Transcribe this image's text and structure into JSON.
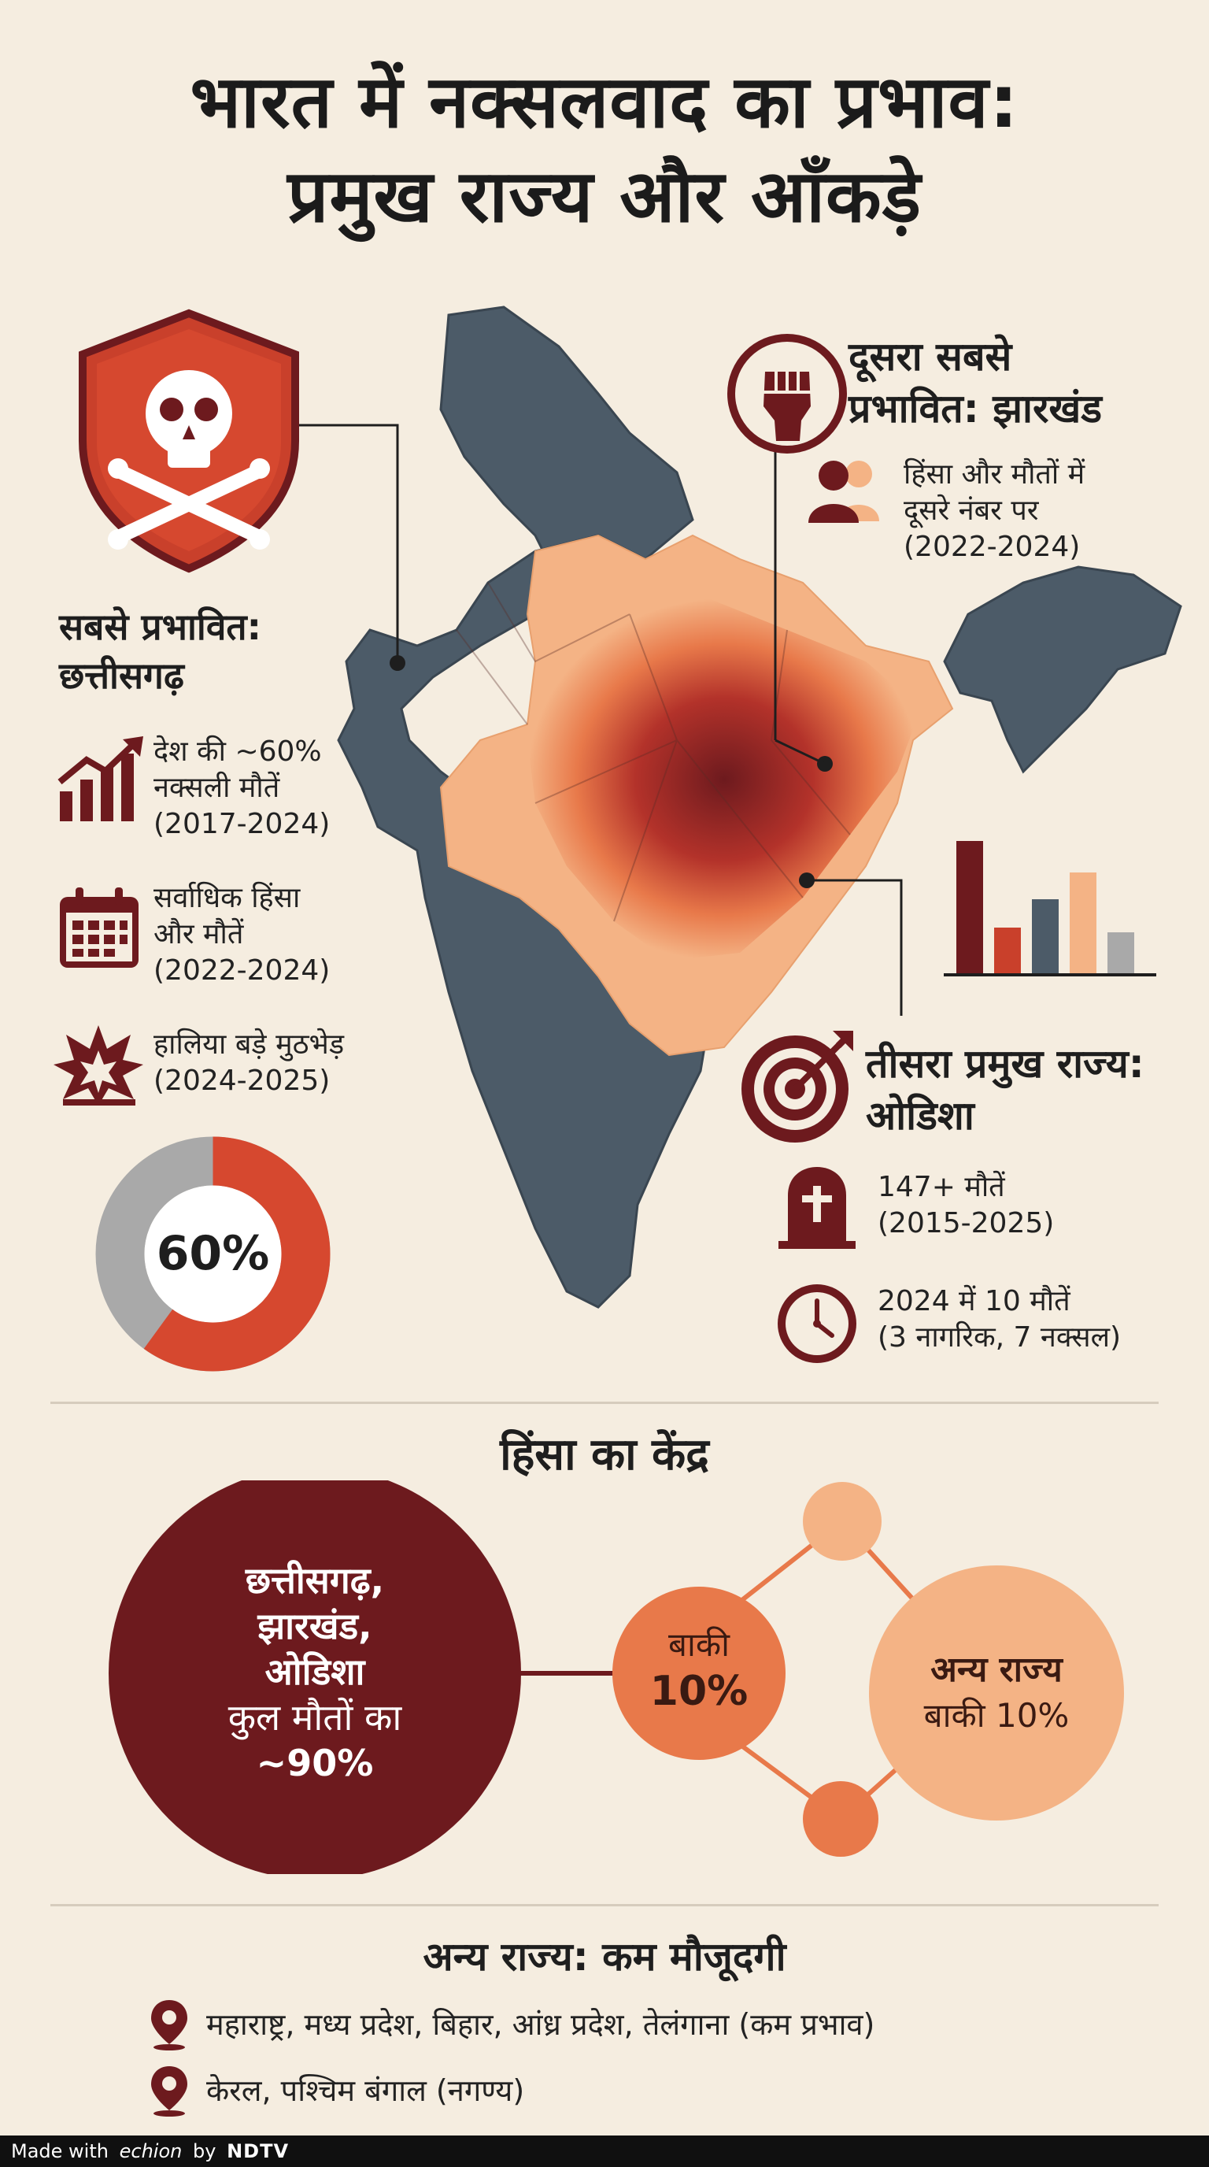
{
  "title": {
    "line1": "भारत में नक्सलवाद का प्रभाव:",
    "line2": "प्रमुख राज्य और आँकड़े"
  },
  "left_panel": {
    "heading_line1": "सबसे प्रभावित:",
    "heading_line2": "छत्तीसगढ़",
    "stats": [
      {
        "icon": "growth-chart-icon",
        "line1": "देश की ~60%",
        "line2": "नक्सली मौतें",
        "line3": "(2017-2024)"
      },
      {
        "icon": "calendar-icon",
        "line1": "सर्वाधिक हिंसा",
        "line2": "और मौतें",
        "line3": "(2022-2024)"
      },
      {
        "icon": "explosion-icon",
        "line1": "हालिया बड़े मुठभेड़",
        "line2": "(2024-2025)"
      }
    ],
    "donut_label": "60%",
    "donut_value": 0.6
  },
  "jharkhand": {
    "heading_line1": "दूसरा सबसे",
    "heading_line2": "प्रभावित: झारखंड",
    "line1": "हिंसा और मौतों में",
    "line2": "दूसरे नंबर पर",
    "line3": "(2022-2024)"
  },
  "odisha": {
    "heading_line1": "तीसरा प्रमुख राज्य:",
    "heading_line2": "ओडिशा",
    "stat1_line1": "147+ मौतें",
    "stat1_line2": "(2015-2025)",
    "stat2_line1": "2024 में 10 मौतें",
    "stat2_line2": "(3 नागरिक, 7 नक्सल)"
  },
  "center_section": {
    "heading": "हिंसा का केंद्र",
    "big_circle": {
      "line1": "छत्तीसगढ़,",
      "line2": "झारखंड,",
      "line3": "ओडिशा",
      "line4": "कुल मौतों का",
      "line5": "~90%"
    },
    "mid_circle": {
      "line1": "बाकी",
      "line2": "10%"
    },
    "right_circle": {
      "line1": "अन्य राज्य",
      "line2": "बाकी 10%"
    }
  },
  "other_states": {
    "heading": "अन्य राज्य: कम मौजूदगी",
    "items": [
      "महाराष्ट्र, मध्य प्रदेश, बिहार, आंध्र प्रदेश, तेलंगाना (कम प्रभाव)",
      "केरल, पश्चिम बंगाल (नगण्य)"
    ]
  },
  "footer": {
    "made_with": "Made with",
    "brand": "echion",
    "by": "by",
    "partner": "NDTV"
  },
  "colors": {
    "background": "#f5ede0",
    "dark_maroon": "#6d1a1e",
    "red": "#c9402b",
    "orange": "#e8794a",
    "peach": "#f4b385",
    "slate": "#4c5b68",
    "grey": "#a9a9a9"
  }
}
